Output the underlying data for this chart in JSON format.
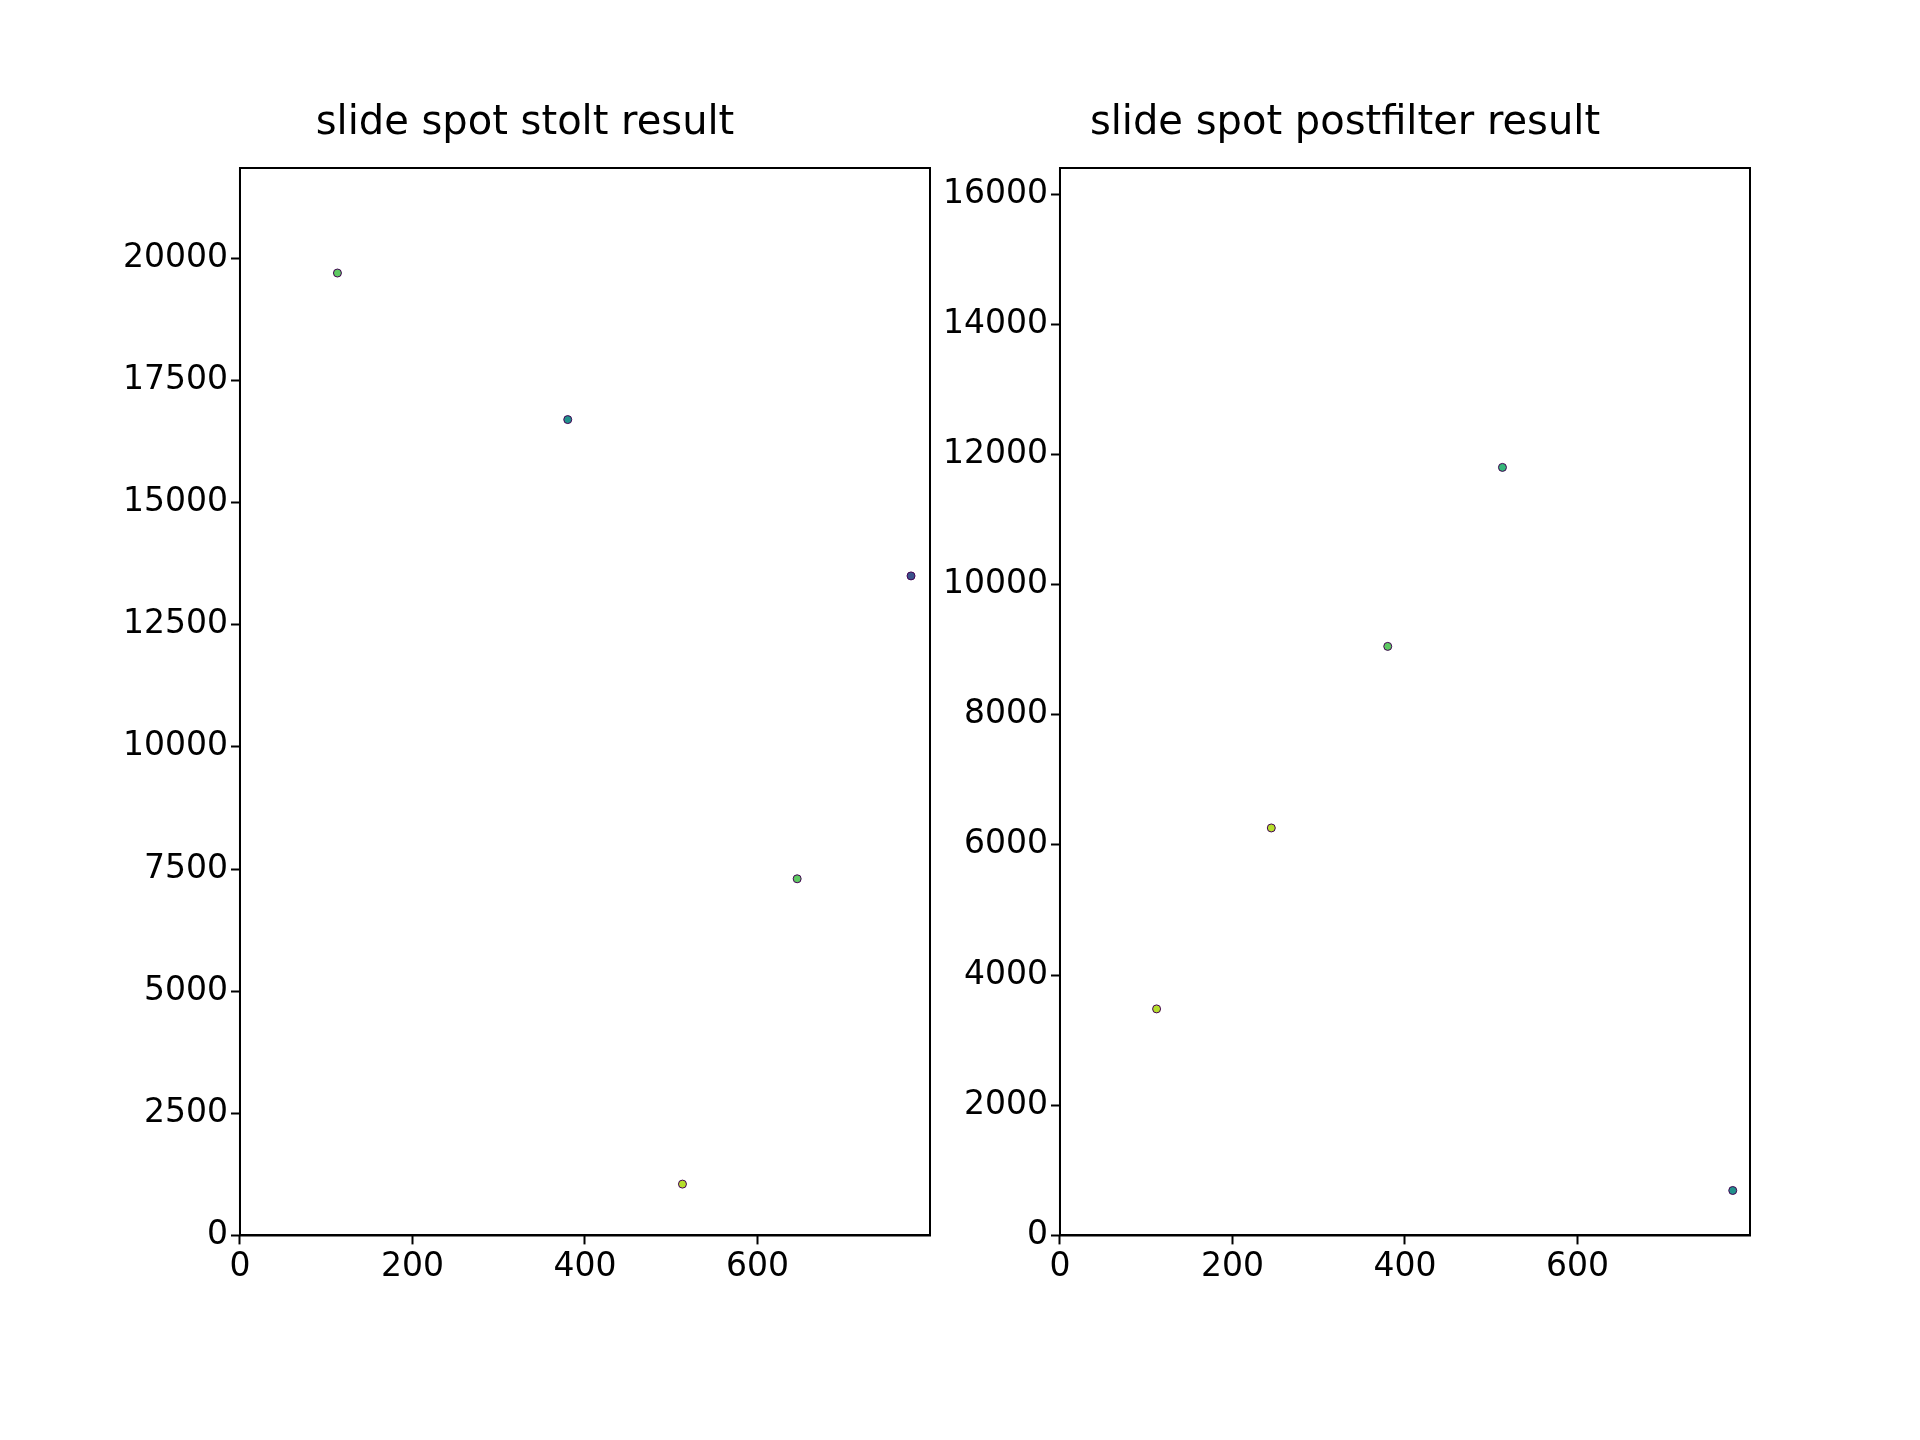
{
  "chart_data": [
    {
      "type": "scatter",
      "title": "slide spot stolt result",
      "x": [
        113,
        380,
        646,
        513,
        778
      ],
      "values": [
        19700,
        16700,
        7300,
        1050,
        13500
      ],
      "colors": [
        "#5ec962",
        "#21918c",
        "#5ec962",
        "#b5de2b",
        "#3b528b"
      ],
      "marker": "circle",
      "xlim": [
        0,
        800
      ],
      "xticks": [
        0,
        200,
        400,
        600
      ],
      "ylim": [
        0,
        21850
      ],
      "yticks": [
        0,
        2500,
        5000,
        7500,
        10000,
        12500,
        15000,
        17500,
        20000
      ],
      "legend": false
    },
    {
      "type": "scatter",
      "title": "slide spot postfilter result",
      "x": [
        112,
        245,
        380,
        513,
        780
      ],
      "values": [
        3480,
        6260,
        9050,
        11800,
        690
      ],
      "colors": [
        "#b5de2b",
        "#b5de2b",
        "#5ec962",
        "#35b779",
        "#21918c"
      ],
      "marker": "circle",
      "xlim": [
        0,
        800
      ],
      "xticks": [
        0,
        200,
        400,
        600
      ],
      "ylim": [
        0,
        16400
      ],
      "yticks": [
        0,
        2000,
        4000,
        6000,
        8000,
        10000,
        12000,
        14000,
        16000
      ],
      "legend": false
    }
  ]
}
